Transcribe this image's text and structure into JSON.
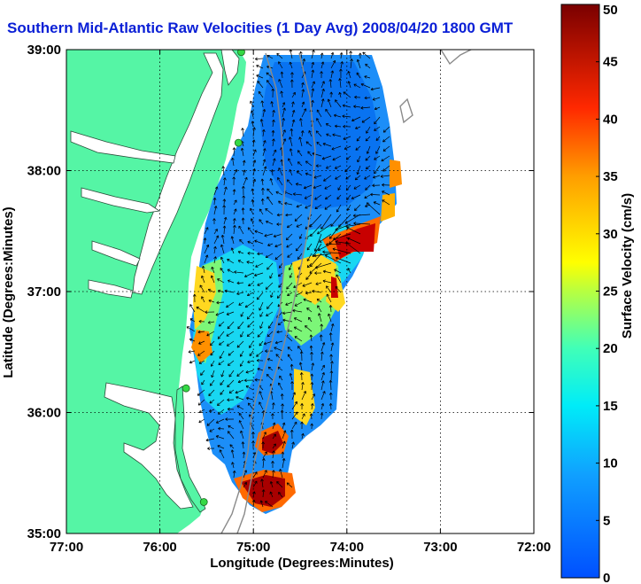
{
  "title": "Southern Mid-Atlantic Raw Velocities (1 Day Avg) 2008/04/20 1800 GMT",
  "map": {
    "xlabel": "Longitude (Degrees:Minutes)",
    "ylabel": "Latitude (Degrees:Minutes)",
    "lon_ticks": [
      "77:00",
      "76:00",
      "75:00",
      "74:00",
      "73:00",
      "72:00"
    ],
    "lat_ticks": [
      "39:00",
      "38:00",
      "37:00",
      "36:00",
      "35:00"
    ],
    "lon_range": [
      -77,
      -72
    ],
    "lat_range": [
      35,
      39
    ],
    "grid": true,
    "land_color": "#55f5a5",
    "ocean_color": "#ffffff",
    "station_color": "#35d845",
    "stations": [
      {
        "lon": -75.13,
        "lat": 38.98
      },
      {
        "lon": -75.16,
        "lat": 38.23
      },
      {
        "lon": -75.72,
        "lat": 36.2
      },
      {
        "lon": -75.53,
        "lat": 35.26
      }
    ]
  },
  "colorbar": {
    "label": "Surface Velocity (cm/s)",
    "min": 0,
    "max": 50,
    "ticks": [
      "0",
      "5",
      "10",
      "15",
      "20",
      "25",
      "30",
      "35",
      "40",
      "45",
      "50"
    ]
  }
}
